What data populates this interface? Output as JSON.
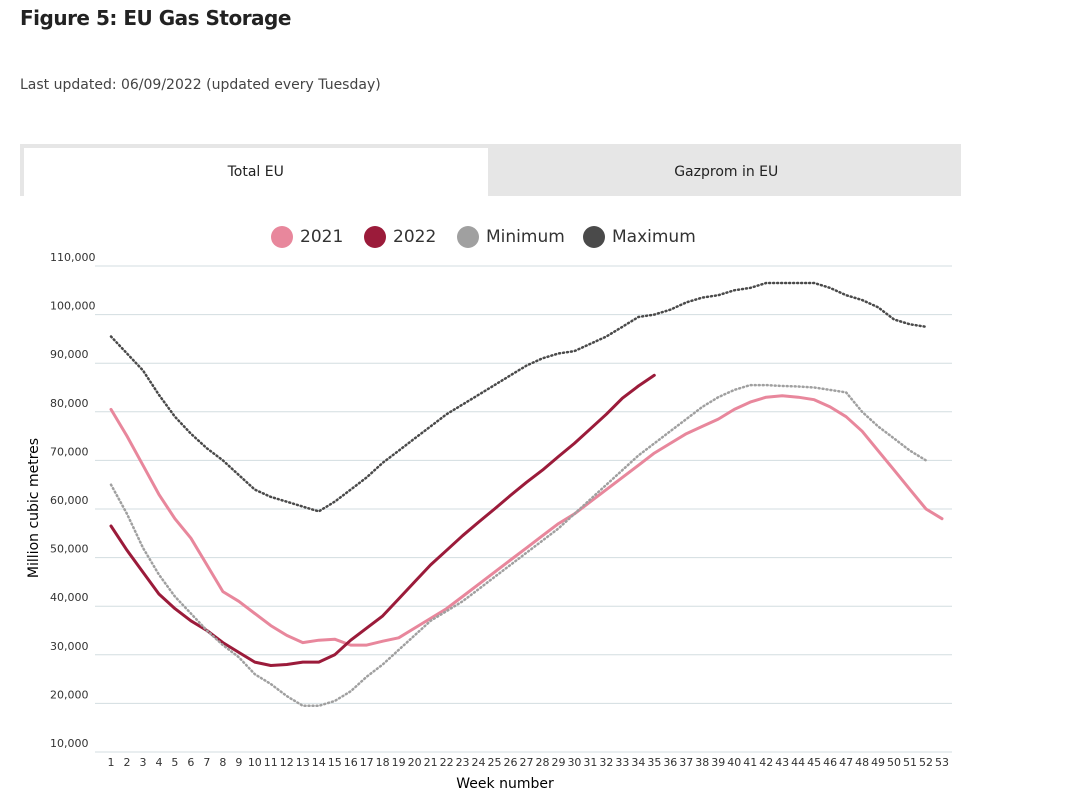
{
  "title": "Figure 5: EU Gas Storage",
  "subtitle": "Last updated: 06/09/2022 (updated every Tuesday)",
  "tabs": [
    {
      "label": "Total EU",
      "active": true
    },
    {
      "label": "Gazprom in EU",
      "active": false
    }
  ],
  "chart_data": {
    "type": "line",
    "x_label": "Week number",
    "y_label": "Million cubic metres",
    "categories": [
      "1",
      "2",
      "3",
      "4",
      "5",
      "6",
      "7",
      "8",
      "9",
      "10",
      "11",
      "12",
      "13",
      "14",
      "15",
      "16",
      "17",
      "18",
      "19",
      "20",
      "21",
      "22",
      "23",
      "24",
      "25",
      "26",
      "27",
      "28",
      "29",
      "30",
      "31",
      "32",
      "33",
      "34",
      "35",
      "36",
      "37",
      "38",
      "39",
      "40",
      "41",
      "42",
      "43",
      "44",
      "45",
      "46",
      "47",
      "48",
      "49",
      "50",
      "51",
      "52",
      "53"
    ],
    "ylim": [
      10000,
      110000
    ],
    "yticks": [
      {
        "value": 10000,
        "label": "10,000"
      },
      {
        "value": 20000,
        "label": "20,000"
      },
      {
        "value": 30000,
        "label": "30,000"
      },
      {
        "value": 40000,
        "label": "40,000"
      },
      {
        "value": 50000,
        "label": "50,000"
      },
      {
        "value": 60000,
        "label": "60,000"
      },
      {
        "value": 70000,
        "label": "70,000"
      },
      {
        "value": 80000,
        "label": "80,000"
      },
      {
        "value": 90000,
        "label": "90,000"
      },
      {
        "value": 100000,
        "label": "100,000"
      },
      {
        "value": 110000,
        "label": "110,000"
      }
    ],
    "grid": true,
    "legend": "top",
    "series": [
      {
        "name": "2021",
        "color": "#e8879c",
        "style": "solid",
        "values": [
          80500,
          75000,
          69000,
          63000,
          58000,
          54000,
          48500,
          43000,
          41000,
          38500,
          36000,
          34000,
          32500,
          33000,
          33200,
          32000,
          32000,
          32800,
          33500,
          35500,
          37500,
          39500,
          42000,
          44500,
          47000,
          49500,
          52000,
          54500,
          57000,
          59000,
          61500,
          64000,
          66500,
          69000,
          71500,
          73500,
          75500,
          77000,
          78500,
          80500,
          82000,
          83000,
          83300,
          83000,
          82500,
          81000,
          79000,
          76000,
          72000,
          68000,
          64000,
          60000,
          58000
        ]
      },
      {
        "name": "2022",
        "color": "#9b1b3a",
        "style": "solid",
        "values": [
          56500,
          51500,
          47000,
          42500,
          39500,
          37000,
          35000,
          32500,
          30500,
          28500,
          27800,
          28000,
          28500,
          28500,
          30000,
          33000,
          35500,
          38000,
          41500,
          45000,
          48500,
          51500,
          54500,
          57300,
          60000,
          62800,
          65500,
          68000,
          70800,
          73500,
          76500,
          79500,
          82800,
          85300,
          87500,
          null,
          null,
          null,
          null,
          null,
          null,
          null,
          null,
          null,
          null,
          null,
          null,
          null,
          null,
          null,
          null,
          null,
          null
        ]
      },
      {
        "name": "Minimum",
        "color": "#a0a0a0",
        "style": "dotted",
        "values": [
          65000,
          59000,
          52000,
          46500,
          42000,
          38500,
          35000,
          32000,
          29500,
          26000,
          24000,
          21500,
          19500,
          19500,
          20500,
          22500,
          25500,
          28000,
          31000,
          34000,
          37000,
          39000,
          41000,
          43500,
          46000,
          48500,
          51000,
          53500,
          56000,
          59000,
          62000,
          65000,
          68000,
          71000,
          73500,
          76000,
          78500,
          81000,
          83000,
          84500,
          85500,
          85500,
          85300,
          85200,
          85000,
          84500,
          84000,
          80000,
          77000,
          74500,
          72000,
          70000,
          null
        ]
      },
      {
        "name": "Maximum",
        "color": "#4a4a4a",
        "style": "dotted",
        "values": [
          95500,
          92000,
          88500,
          83500,
          79000,
          75500,
          72500,
          70000,
          67000,
          64000,
          62500,
          61500,
          60500,
          59500,
          61500,
          64000,
          66500,
          69500,
          72000,
          74500,
          77000,
          79500,
          81500,
          83500,
          85500,
          87500,
          89500,
          91000,
          92000,
          92500,
          94000,
          95500,
          97500,
          99500,
          100000,
          101000,
          102500,
          103500,
          104000,
          105000,
          105500,
          106500,
          106500,
          106500,
          106500,
          105500,
          104000,
          103000,
          101500,
          99000,
          98000,
          97500,
          null
        ]
      }
    ]
  }
}
